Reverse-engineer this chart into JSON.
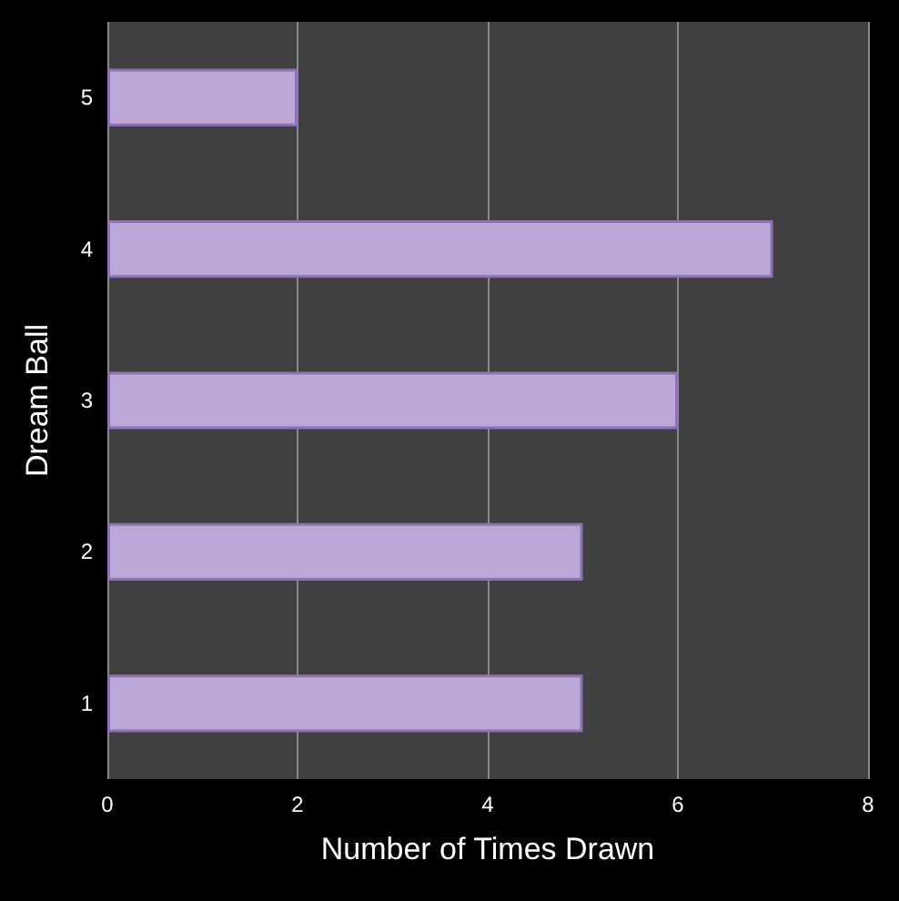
{
  "chart_data": {
    "type": "bar",
    "orientation": "horizontal",
    "xlabel": "Number of Times Drawn",
    "ylabel": "Dream Ball",
    "categories": [
      "5",
      "4",
      "3",
      "2",
      "1"
    ],
    "values": [
      2,
      7,
      6,
      5,
      5
    ],
    "color": "#bba8d8",
    "xlim": [
      0,
      8
    ],
    "xticks": [
      0,
      2,
      4,
      6,
      8
    ],
    "grid": "x"
  }
}
